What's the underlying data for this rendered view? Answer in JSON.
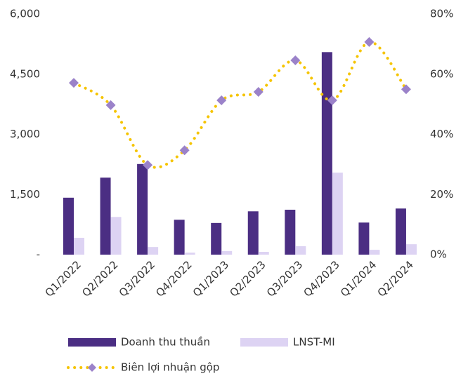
{
  "chart_data": {
    "type": "bar",
    "categories": [
      "Q1/2022",
      "Q2/2022",
      "Q3/2022",
      "Q4/2022",
      "Q1/2023",
      "Q2/2023",
      "Q3/2023",
      "Q4/2023",
      "Q1/2024",
      "Q2/2024"
    ],
    "series": [
      {
        "name": "Doanh thu thuần",
        "color": "#4b2e83",
        "values": [
          1420,
          1920,
          2260,
          870,
          790,
          1080,
          1120,
          5050,
          800,
          1150
        ]
      },
      {
        "name": "LNST-MI",
        "color": "#ddd3f3",
        "values": [
          420,
          940,
          190,
          50,
          90,
          70,
          210,
          2045,
          120,
          260
        ]
      },
      {
        "name": "Biên lợi nhuận gộp",
        "type": "line",
        "axis": "y2",
        "color": "#f5c400",
        "marker_color": "#9b82c9",
        "values": [
          57.1,
          49.7,
          29.8,
          34.7,
          51.3,
          54.1,
          64.6,
          51.3,
          70.7,
          55.0
        ]
      }
    ],
    "ylim": [
      0,
      6000
    ],
    "yticks": [
      {
        "value": 0,
        "label": "-"
      },
      {
        "value": 1500,
        "label": "1,500"
      },
      {
        "value": 3000,
        "label": "3,000"
      },
      {
        "value": 4500,
        "label": "4,500"
      },
      {
        "value": 6000,
        "label": "6,000"
      }
    ],
    "y2lim": [
      0,
      80
    ],
    "y2ticks": [
      {
        "value": 0,
        "label": "0%"
      },
      {
        "value": 20,
        "label": "20%"
      },
      {
        "value": 40,
        "label": "40%"
      },
      {
        "value": 60,
        "label": "60%"
      },
      {
        "value": 80,
        "label": "80%"
      }
    ],
    "grid": false
  }
}
